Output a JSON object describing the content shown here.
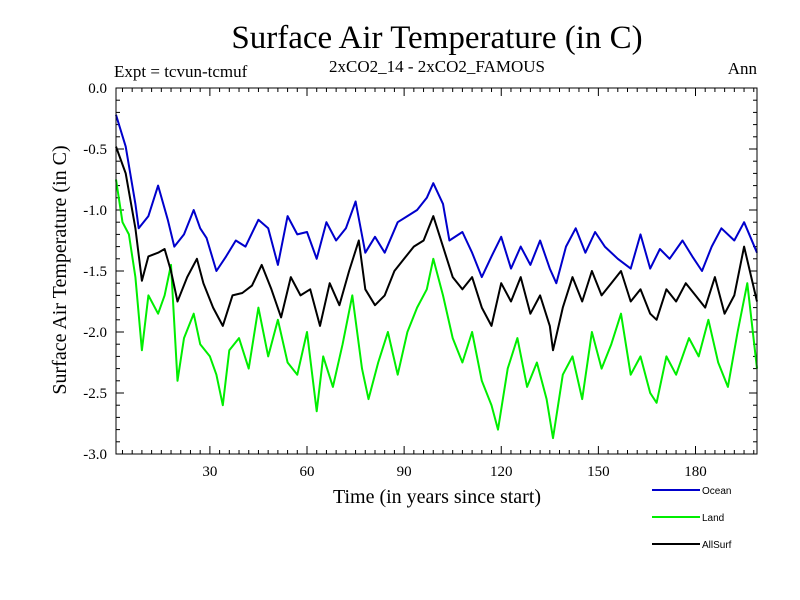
{
  "chart_data": {
    "type": "line",
    "title": "Surface Air Temperature (in C)",
    "subtitle_left": "Expt = tcvun-tcmuf",
    "subtitle_center": "2xCO2_14 - 2xCO2_FAMOUS",
    "subtitle_right": "Ann",
    "xlabel": "Time (in years since start)",
    "ylabel": "Surface Air Temperature (in C)",
    "xlim": [
      1,
      199
    ],
    "ylim": [
      -3.0,
      0.0
    ],
    "xticks": [
      30,
      60,
      90,
      120,
      150,
      180
    ],
    "xtick_labels": [
      "30",
      "60",
      "90",
      "120",
      "150",
      "180"
    ],
    "yticks": [
      0.0,
      -0.5,
      -1.0,
      -1.5,
      -2.0,
      -2.5,
      -3.0
    ],
    "ytick_labels": [
      "0.0",
      "-0.5",
      "-1.0",
      "-1.5",
      "-2.0",
      "-2.5",
      "-3.0"
    ],
    "grid": false,
    "legend_position": "bottom-right-below",
    "series": [
      {
        "name": "Ocean",
        "color": "#0000cc",
        "points": [
          [
            1,
            -0.22
          ],
          [
            4,
            -0.48
          ],
          [
            7,
            -0.95
          ],
          [
            8,
            -1.15
          ],
          [
            11,
            -1.05
          ],
          [
            14,
            -0.8
          ],
          [
            17,
            -1.08
          ],
          [
            19,
            -1.3
          ],
          [
            22,
            -1.2
          ],
          [
            25,
            -1.0
          ],
          [
            27,
            -1.15
          ],
          [
            29,
            -1.23
          ],
          [
            32,
            -1.5
          ],
          [
            35,
            -1.38
          ],
          [
            38,
            -1.25
          ],
          [
            41,
            -1.3
          ],
          [
            45,
            -1.08
          ],
          [
            48,
            -1.15
          ],
          [
            51,
            -1.45
          ],
          [
            54,
            -1.05
          ],
          [
            57,
            -1.2
          ],
          [
            60,
            -1.18
          ],
          [
            63,
            -1.4
          ],
          [
            66,
            -1.1
          ],
          [
            69,
            -1.25
          ],
          [
            72,
            -1.15
          ],
          [
            75,
            -0.93
          ],
          [
            78,
            -1.35
          ],
          [
            81,
            -1.22
          ],
          [
            84,
            -1.35
          ],
          [
            88,
            -1.1
          ],
          [
            91,
            -1.05
          ],
          [
            94,
            -1.0
          ],
          [
            97,
            -0.9
          ],
          [
            99,
            -0.78
          ],
          [
            102,
            -0.95
          ],
          [
            104,
            -1.25
          ],
          [
            108,
            -1.18
          ],
          [
            111,
            -1.35
          ],
          [
            114,
            -1.55
          ],
          [
            117,
            -1.38
          ],
          [
            120,
            -1.22
          ],
          [
            123,
            -1.48
          ],
          [
            126,
            -1.3
          ],
          [
            129,
            -1.45
          ],
          [
            132,
            -1.25
          ],
          [
            135,
            -1.48
          ],
          [
            137,
            -1.6
          ],
          [
            140,
            -1.3
          ],
          [
            143,
            -1.15
          ],
          [
            146,
            -1.35
          ],
          [
            149,
            -1.18
          ],
          [
            152,
            -1.3
          ],
          [
            156,
            -1.4
          ],
          [
            160,
            -1.48
          ],
          [
            163,
            -1.2
          ],
          [
            166,
            -1.48
          ],
          [
            169,
            -1.32
          ],
          [
            172,
            -1.4
          ],
          [
            176,
            -1.25
          ],
          [
            179,
            -1.38
          ],
          [
            182,
            -1.5
          ],
          [
            185,
            -1.3
          ],
          [
            188,
            -1.15
          ],
          [
            192,
            -1.25
          ],
          [
            195,
            -1.1
          ],
          [
            199,
            -1.35
          ]
        ]
      },
      {
        "name": "Land",
        "color": "#00ee00",
        "points": [
          [
            1,
            -0.75
          ],
          [
            3,
            -1.1
          ],
          [
            5,
            -1.2
          ],
          [
            7,
            -1.55
          ],
          [
            9,
            -2.15
          ],
          [
            11,
            -1.7
          ],
          [
            14,
            -1.85
          ],
          [
            16,
            -1.7
          ],
          [
            18,
            -1.45
          ],
          [
            20,
            -2.4
          ],
          [
            22,
            -2.05
          ],
          [
            25,
            -1.85
          ],
          [
            27,
            -2.1
          ],
          [
            30,
            -2.2
          ],
          [
            32,
            -2.35
          ],
          [
            34,
            -2.6
          ],
          [
            36,
            -2.15
          ],
          [
            39,
            -2.05
          ],
          [
            42,
            -2.3
          ],
          [
            45,
            -1.8
          ],
          [
            48,
            -2.2
          ],
          [
            51,
            -1.9
          ],
          [
            54,
            -2.25
          ],
          [
            57,
            -2.35
          ],
          [
            60,
            -2.0
          ],
          [
            63,
            -2.65
          ],
          [
            65,
            -2.2
          ],
          [
            68,
            -2.45
          ],
          [
            71,
            -2.1
          ],
          [
            74,
            -1.7
          ],
          [
            77,
            -2.3
          ],
          [
            79,
            -2.55
          ],
          [
            82,
            -2.25
          ],
          [
            85,
            -2.0
          ],
          [
            88,
            -2.35
          ],
          [
            91,
            -2.0
          ],
          [
            94,
            -1.8
          ],
          [
            97,
            -1.65
          ],
          [
            99,
            -1.4
          ],
          [
            102,
            -1.7
          ],
          [
            105,
            -2.05
          ],
          [
            108,
            -2.25
          ],
          [
            111,
            -2.0
          ],
          [
            114,
            -2.4
          ],
          [
            117,
            -2.6
          ],
          [
            119,
            -2.8
          ],
          [
            122,
            -2.3
          ],
          [
            125,
            -2.05
          ],
          [
            128,
            -2.45
          ],
          [
            131,
            -2.25
          ],
          [
            134,
            -2.55
          ],
          [
            136,
            -2.87
          ],
          [
            139,
            -2.35
          ],
          [
            142,
            -2.2
          ],
          [
            145,
            -2.55
          ],
          [
            148,
            -2.0
          ],
          [
            151,
            -2.3
          ],
          [
            154,
            -2.1
          ],
          [
            157,
            -1.85
          ],
          [
            160,
            -2.35
          ],
          [
            163,
            -2.2
          ],
          [
            166,
            -2.5
          ],
          [
            168,
            -2.58
          ],
          [
            171,
            -2.2
          ],
          [
            174,
            -2.35
          ],
          [
            178,
            -2.05
          ],
          [
            181,
            -2.2
          ],
          [
            184,
            -1.9
          ],
          [
            187,
            -2.25
          ],
          [
            190,
            -2.45
          ],
          [
            193,
            -2.0
          ],
          [
            196,
            -1.6
          ],
          [
            199,
            -2.3
          ]
        ]
      },
      {
        "name": "AllSurf",
        "color": "#000000",
        "points": [
          [
            1,
            -0.48
          ],
          [
            4,
            -0.7
          ],
          [
            7,
            -1.15
          ],
          [
            9,
            -1.58
          ],
          [
            11,
            -1.38
          ],
          [
            14,
            -1.35
          ],
          [
            16,
            -1.32
          ],
          [
            18,
            -1.5
          ],
          [
            20,
            -1.75
          ],
          [
            23,
            -1.55
          ],
          [
            26,
            -1.4
          ],
          [
            28,
            -1.6
          ],
          [
            31,
            -1.8
          ],
          [
            34,
            -1.95
          ],
          [
            37,
            -1.7
          ],
          [
            40,
            -1.68
          ],
          [
            43,
            -1.62
          ],
          [
            46,
            -1.45
          ],
          [
            49,
            -1.65
          ],
          [
            52,
            -1.88
          ],
          [
            55,
            -1.55
          ],
          [
            58,
            -1.7
          ],
          [
            61,
            -1.65
          ],
          [
            64,
            -1.95
          ],
          [
            67,
            -1.6
          ],
          [
            70,
            -1.78
          ],
          [
            73,
            -1.5
          ],
          [
            76,
            -1.25
          ],
          [
            78,
            -1.65
          ],
          [
            81,
            -1.78
          ],
          [
            84,
            -1.7
          ],
          [
            87,
            -1.5
          ],
          [
            90,
            -1.4
          ],
          [
            93,
            -1.3
          ],
          [
            96,
            -1.25
          ],
          [
            99,
            -1.05
          ],
          [
            102,
            -1.3
          ],
          [
            105,
            -1.55
          ],
          [
            108,
            -1.65
          ],
          [
            111,
            -1.55
          ],
          [
            114,
            -1.8
          ],
          [
            117,
            -1.95
          ],
          [
            120,
            -1.6
          ],
          [
            123,
            -1.75
          ],
          [
            126,
            -1.55
          ],
          [
            129,
            -1.85
          ],
          [
            132,
            -1.7
          ],
          [
            135,
            -1.95
          ],
          [
            136,
            -2.15
          ],
          [
            139,
            -1.8
          ],
          [
            142,
            -1.55
          ],
          [
            145,
            -1.75
          ],
          [
            148,
            -1.5
          ],
          [
            151,
            -1.7
          ],
          [
            154,
            -1.6
          ],
          [
            157,
            -1.5
          ],
          [
            160,
            -1.75
          ],
          [
            163,
            -1.65
          ],
          [
            166,
            -1.85
          ],
          [
            168,
            -1.9
          ],
          [
            171,
            -1.65
          ],
          [
            174,
            -1.75
          ],
          [
            177,
            -1.6
          ],
          [
            180,
            -1.7
          ],
          [
            183,
            -1.8
          ],
          [
            186,
            -1.55
          ],
          [
            189,
            -1.85
          ],
          [
            192,
            -1.7
          ],
          [
            195,
            -1.3
          ],
          [
            199,
            -1.75
          ]
        ]
      }
    ]
  }
}
